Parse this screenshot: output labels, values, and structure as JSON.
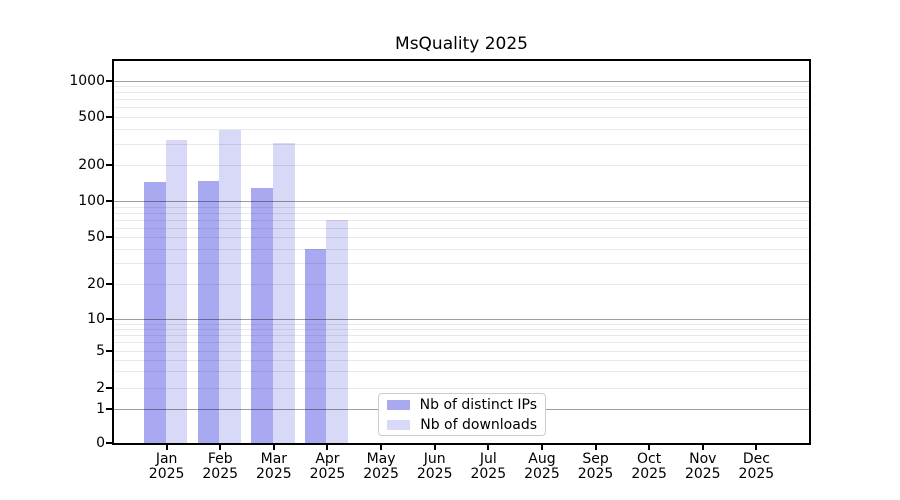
{
  "chart_data": {
    "type": "bar",
    "title": "MsQuality 2025",
    "categories": [
      "Jan",
      "Feb",
      "Mar",
      "Apr",
      "May",
      "Jun",
      "Jul",
      "Aug",
      "Sep",
      "Oct",
      "Nov",
      "Dec"
    ],
    "category_year_line": "2025",
    "series": [
      {
        "name": "Nb of distinct IPs",
        "color": "#a9a9f2",
        "values": [
          145,
          148,
          130,
          40,
          null,
          null,
          null,
          null,
          null,
          null,
          null,
          null
        ]
      },
      {
        "name": "Nb of downloads",
        "color": "#d8d8f7",
        "values": [
          320,
          390,
          305,
          70,
          null,
          null,
          null,
          null,
          null,
          null,
          null,
          null
        ]
      }
    ],
    "yscale": "symlog",
    "yticks": [
      0,
      1,
      2,
      5,
      10,
      20,
      50,
      100,
      200,
      500,
      1000
    ],
    "ylim": [
      0,
      1500
    ],
    "xlabel": "",
    "ylabel": "",
    "grid": "horizontal major and minor gridlines",
    "legend_position": "inside bottom-center"
  }
}
